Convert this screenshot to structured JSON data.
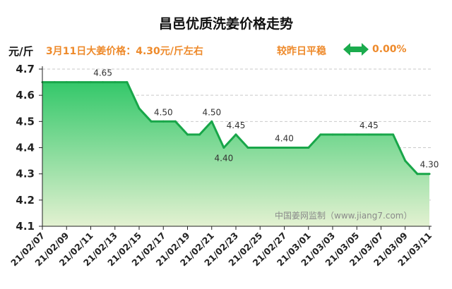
{
  "header": {
    "price_note": "3月11日大姜价格：4.30元/斤左右",
    "change_text": "较昨日平稳",
    "change_icon": "double-arrow-icon",
    "change_percent": "0.00%"
  },
  "watermark": "中国姜网监制（www.jiang7.com）",
  "colors": {
    "title_text": "#111111",
    "accent_orange": "#ee8a2b",
    "arrow_green": "#1bab4d",
    "line_green": "#18a649",
    "fill_top": "#34c86a",
    "fill_bottom": "#e3f1d1",
    "grid": "#c9c9c9",
    "axis": "#222222",
    "label_text": "#333333",
    "watermark_text": "#8a8a8a"
  },
  "chart_data": {
    "type": "area",
    "title": "昌邑优质洗姜价格走势",
    "ylabel": "元/斤",
    "ylim": [
      4.1,
      4.7
    ],
    "y_ticks": [
      4.1,
      4.2,
      4.3,
      4.4,
      4.5,
      4.6,
      4.7
    ],
    "grid": true,
    "x_tick_labels": [
      "21/02/07",
      "21/02/09",
      "21/02/11",
      "21/02/13",
      "21/02/15",
      "21/02/17",
      "21/02/19",
      "21/02/21",
      "21/02/23",
      "21/02/25",
      "21/02/27",
      "21/03/01",
      "21/03/03",
      "21/03/05",
      "21/03/07",
      "21/03/09",
      "21/03/11"
    ],
    "points": [
      {
        "x": "21/02/07",
        "y": 4.65
      },
      {
        "x": "21/02/08",
        "y": 4.65
      },
      {
        "x": "21/02/09",
        "y": 4.65
      },
      {
        "x": "21/02/10",
        "y": 4.65
      },
      {
        "x": "21/02/11",
        "y": 4.65
      },
      {
        "x": "21/02/12",
        "y": 4.65,
        "label": "4.65",
        "label_pos": "above"
      },
      {
        "x": "21/02/13",
        "y": 4.65
      },
      {
        "x": "21/02/14",
        "y": 4.65
      },
      {
        "x": "21/02/15",
        "y": 4.55
      },
      {
        "x": "21/02/16",
        "y": 4.5
      },
      {
        "x": "21/02/17",
        "y": 4.5,
        "label": "4.50",
        "label_pos": "above"
      },
      {
        "x": "21/02/18",
        "y": 4.5
      },
      {
        "x": "21/02/19",
        "y": 4.45
      },
      {
        "x": "21/02/20",
        "y": 4.45
      },
      {
        "x": "21/02/21",
        "y": 4.5,
        "label": "4.50",
        "label_pos": "above"
      },
      {
        "x": "21/02/22",
        "y": 4.4,
        "label": "4.40",
        "label_pos": "below"
      },
      {
        "x": "21/02/23",
        "y": 4.45,
        "label": "4.45",
        "label_pos": "above"
      },
      {
        "x": "21/02/24",
        "y": 4.4
      },
      {
        "x": "21/02/25",
        "y": 4.4
      },
      {
        "x": "21/02/26",
        "y": 4.4
      },
      {
        "x": "21/02/27",
        "y": 4.4,
        "label": "4.40",
        "label_pos": "above"
      },
      {
        "x": "21/02/28",
        "y": 4.4
      },
      {
        "x": "21/03/01",
        "y": 4.4
      },
      {
        "x": "21/03/02",
        "y": 4.45
      },
      {
        "x": "21/03/03",
        "y": 4.45
      },
      {
        "x": "21/03/04",
        "y": 4.45
      },
      {
        "x": "21/03/05",
        "y": 4.45
      },
      {
        "x": "21/03/06",
        "y": 4.45,
        "label": "4.45",
        "label_pos": "above"
      },
      {
        "x": "21/03/07",
        "y": 4.45
      },
      {
        "x": "21/03/08",
        "y": 4.45
      },
      {
        "x": "21/03/09",
        "y": 4.35
      },
      {
        "x": "21/03/10",
        "y": 4.3
      },
      {
        "x": "21/03/11",
        "y": 4.3,
        "label": "4.30",
        "label_pos": "above"
      }
    ]
  }
}
